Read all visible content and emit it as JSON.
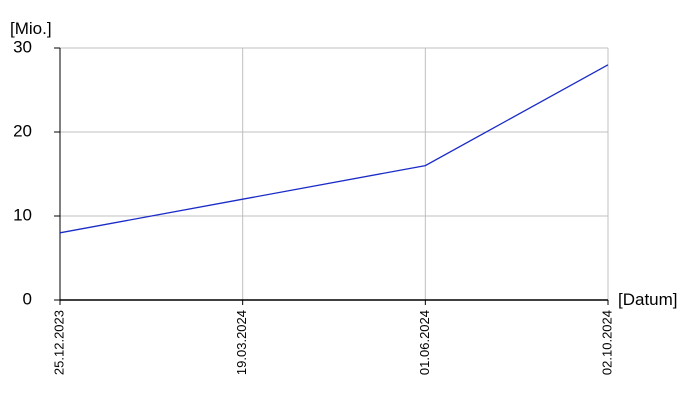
{
  "chart_data": {
    "type": "line",
    "y_label": "[Mio.]",
    "x_label": "[Datum]",
    "categories": [
      "25.12.2023",
      "19.03.2024",
      "01.06.2024",
      "02.10.2024"
    ],
    "series": [
      {
        "color": "#1a2bc8",
        "values": [
          8,
          12,
          16,
          28
        ]
      }
    ],
    "ylim": [
      0,
      30
    ],
    "yticks": [
      0,
      10,
      20,
      30
    ],
    "grid": true
  }
}
